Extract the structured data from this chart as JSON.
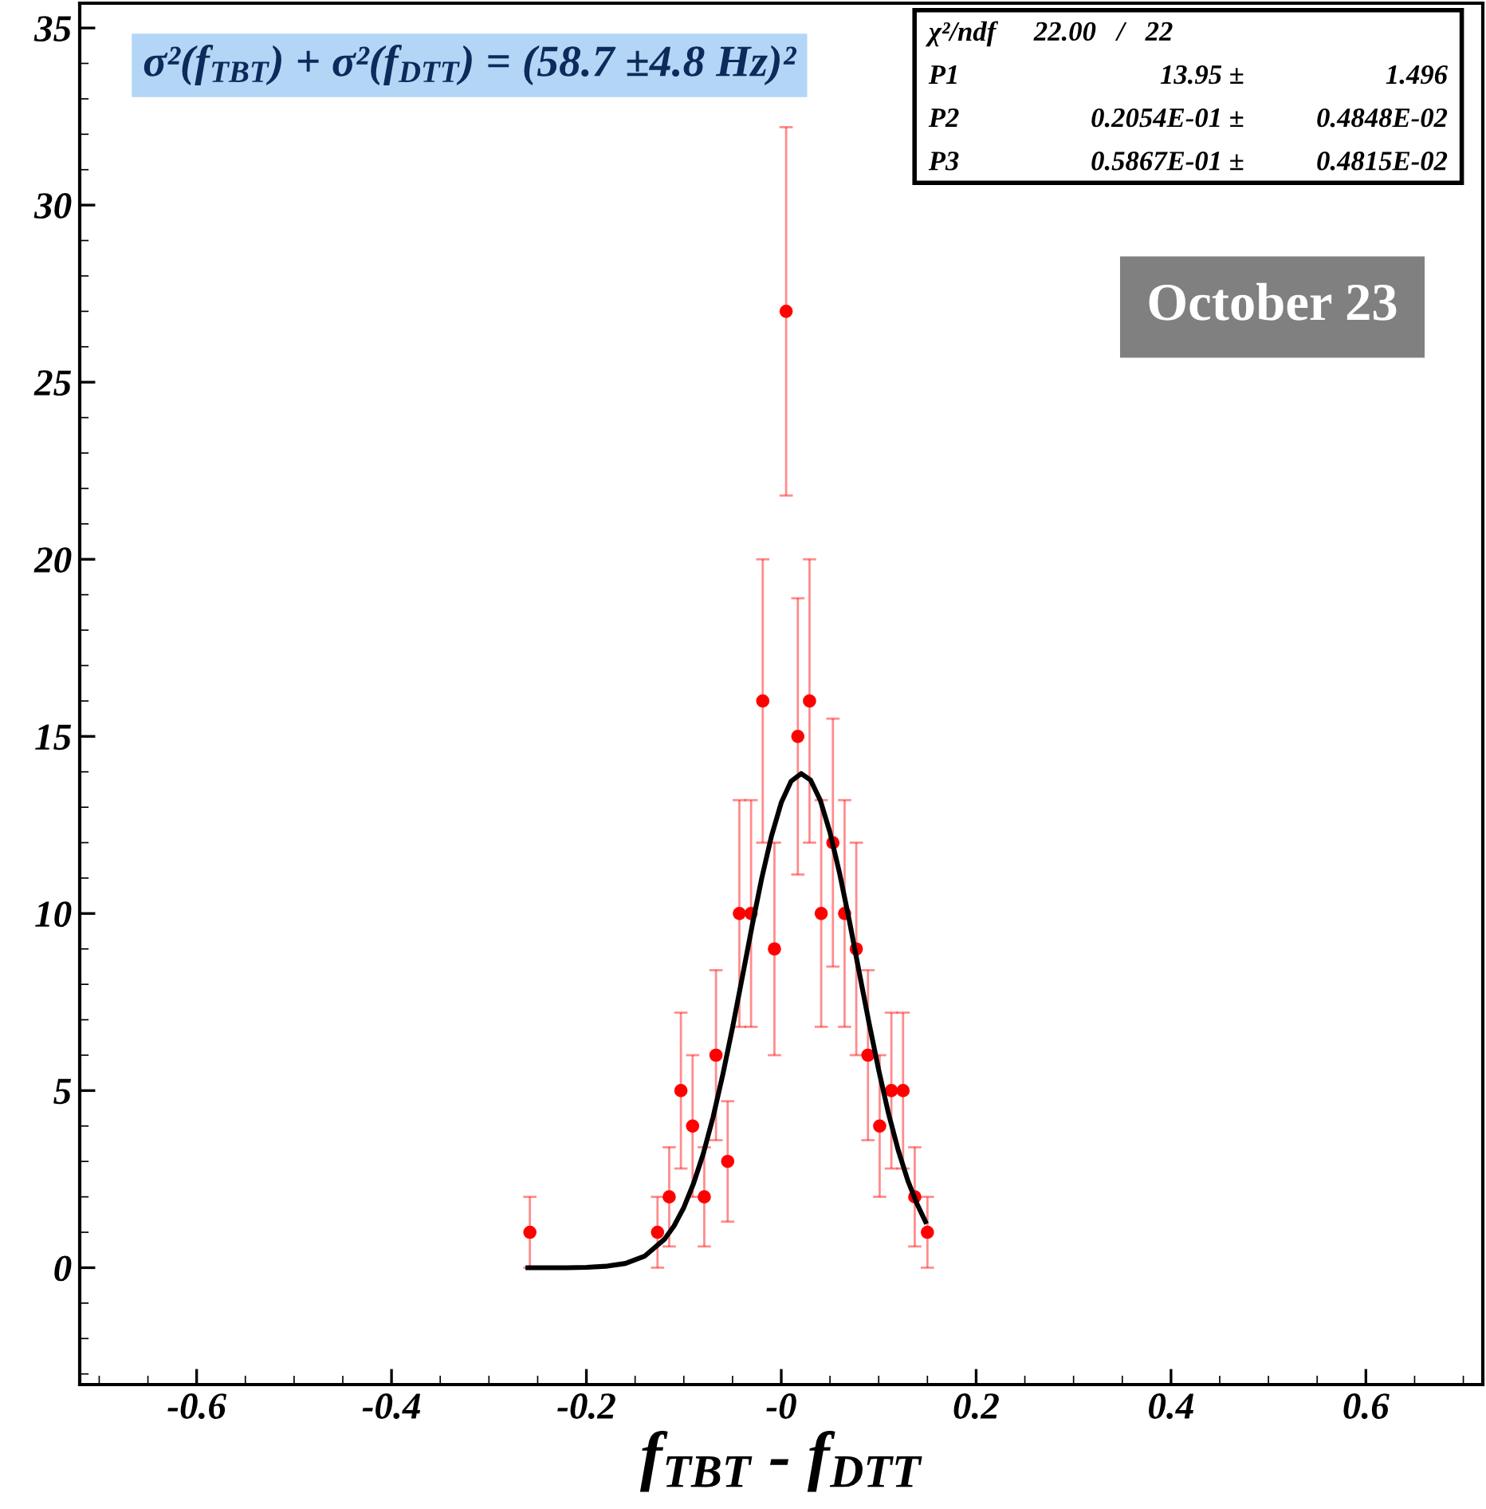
{
  "chart_data": {
    "type": "scatter",
    "xlabel": "f$_{TBT}$ - f$_{DTT}$",
    "xlim": [
      -0.72,
      0.72
    ],
    "ylim": [
      -3.3,
      35.7
    ],
    "xticks": [
      -0.6,
      -0.4,
      -0.2,
      {
        "value": 0,
        "label": "-0"
      },
      0.2,
      0.4,
      0.6
    ],
    "yticks": [
      0,
      5,
      10,
      15,
      20,
      25,
      30,
      35
    ],
    "grid": false,
    "marker": "circle",
    "series": [
      {
        "color": "#ff0000",
        "x": [
          -0.258,
          -0.127,
          -0.115,
          -0.103,
          -0.091,
          -0.079,
          -0.067,
          -0.055,
          -0.043,
          -0.031,
          -0.019,
          -0.007,
          0.005,
          0.017,
          0.029,
          0.041,
          0.053,
          0.065,
          0.077,
          0.089,
          0.101,
          0.113,
          0.125,
          0.137,
          0.15
        ],
        "values": [
          1,
          1,
          2,
          5,
          4,
          2,
          6,
          3,
          10,
          10,
          16,
          9,
          27,
          15,
          16,
          10,
          12,
          10,
          9,
          6,
          4,
          5,
          5,
          2,
          1
        ],
        "errors": [
          1,
          1,
          1.4,
          2.2,
          2,
          1.4,
          2.4,
          1.7,
          3.2,
          3.2,
          4,
          3,
          5.2,
          3.9,
          4,
          3.2,
          3.5,
          3.2,
          3,
          2.4,
          2,
          2.2,
          2.2,
          1.4,
          1
        ]
      },
      {
        "type": "line",
        "color": "#000000",
        "line_style": "solid",
        "marker": "none",
        "x": [
          -0.26,
          -0.24,
          -0.22,
          -0.2,
          -0.18,
          -0.16,
          -0.14,
          -0.12,
          -0.11,
          -0.1,
          -0.09,
          -0.08,
          -0.07,
          -0.06,
          -0.05,
          -0.04,
          -0.03,
          -0.02,
          -0.01,
          0.0,
          0.01,
          0.0205,
          0.03,
          0.04,
          0.05,
          0.06,
          0.07,
          0.08,
          0.09,
          0.1,
          0.11,
          0.12,
          0.13,
          0.14,
          0.148
        ],
        "values": [
          0,
          0,
          0,
          0.01,
          0.04,
          0.12,
          0.33,
          0.8,
          1.18,
          1.7,
          2.38,
          3.22,
          4.25,
          5.45,
          6.78,
          8.2,
          9.64,
          11.0,
          12.19,
          13.13,
          13.73,
          13.95,
          13.77,
          13.2,
          12.29,
          11.12,
          9.78,
          8.34,
          6.92,
          5.58,
          4.36,
          3.32,
          2.45,
          1.76,
          1.3
        ]
      }
    ],
    "annotations": [
      "σ²(f$_{TBT}$) + σ²(f$_{DTT}$) = (58.7 ±4.8 Hz)²",
      "χ²/ndf",
      "22.00   /   22",
      "P1",
      "13.95 ±",
      "1.496",
      "P2",
      "0.2054E-01 ±",
      "0.4848E-02",
      "P3",
      "0.5867E-01 ±",
      "0.4815E-02",
      "October 23"
    ]
  }
}
